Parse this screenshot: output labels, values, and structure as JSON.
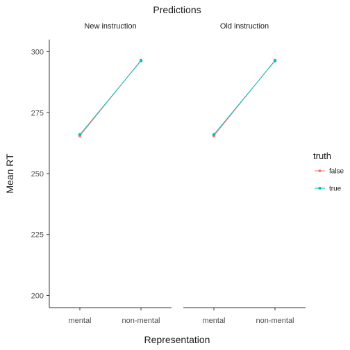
{
  "chart_data": {
    "type": "line",
    "title": "Predictions",
    "xlabel": "Representation",
    "ylabel": "Mean RT",
    "ylim": [
      195,
      305
    ],
    "yticks": [
      200,
      225,
      250,
      275,
      300
    ],
    "categories": [
      "mental",
      "non-mental"
    ],
    "panels": [
      {
        "name": "New instruction",
        "series": [
          {
            "name": "false",
            "color": "#F8766D",
            "values": [
              265.5,
              296.5
            ]
          },
          {
            "name": "true",
            "color": "#00BFC4",
            "values": [
              266,
              296.3
            ]
          }
        ]
      },
      {
        "name": "Old instruction",
        "series": [
          {
            "name": "false",
            "color": "#F8766D",
            "values": [
              265.5,
              296.5
            ]
          },
          {
            "name": "true",
            "color": "#00BFC4",
            "values": [
              266,
              296.3
            ]
          }
        ]
      }
    ],
    "legend": {
      "title": "truth",
      "position": "right",
      "entries": [
        {
          "label": "false",
          "color": "#F8766D"
        },
        {
          "label": "true",
          "color": "#00BFC4"
        }
      ]
    },
    "grid": false
  }
}
